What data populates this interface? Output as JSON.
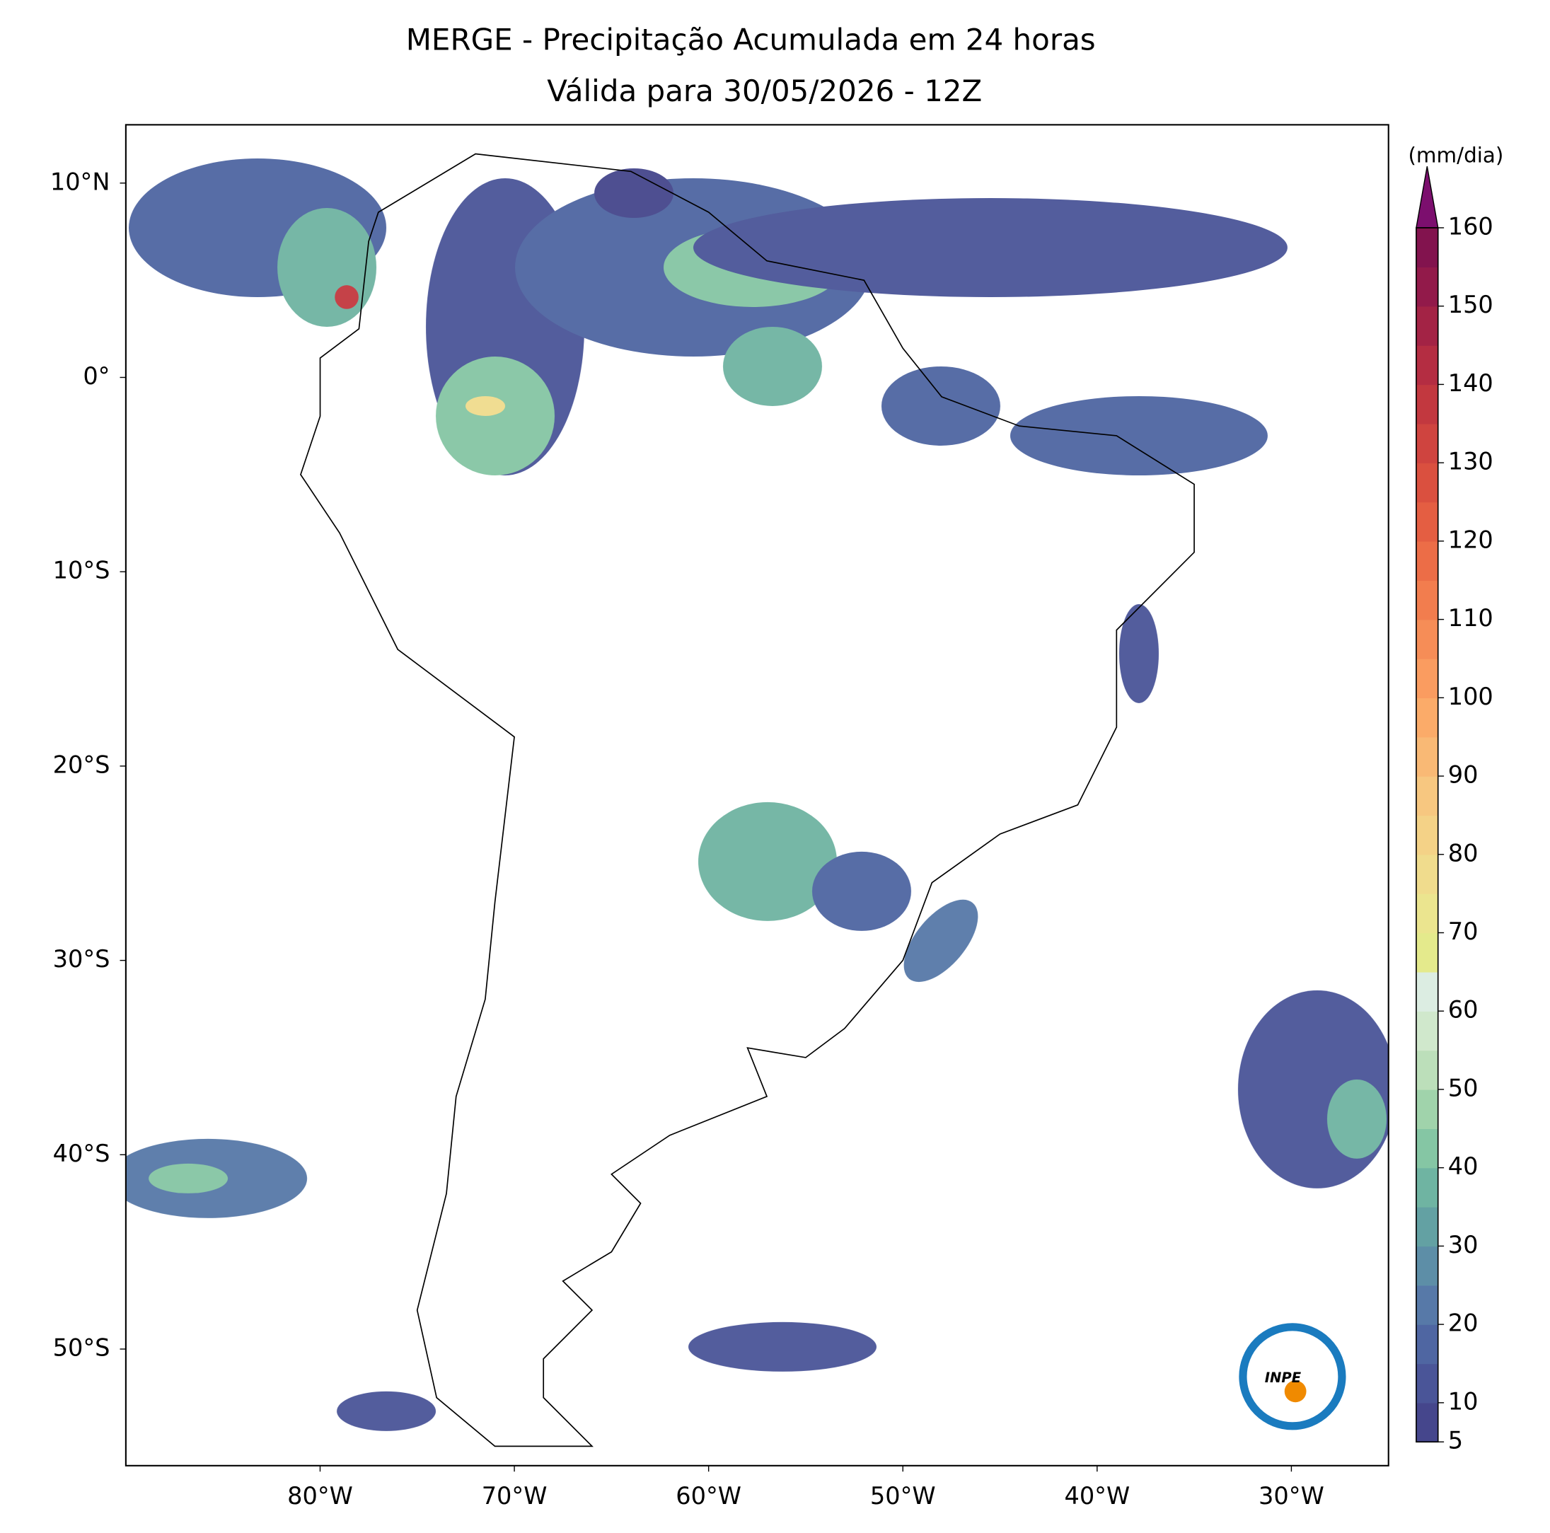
{
  "title": "MERGE - Precipitação Acumulada em 24 horas",
  "subtitle": "Válida para 30/05/2026 - 12Z",
  "map": {
    "xlim": [
      -90,
      -25
    ],
    "ylim": [
      -56,
      13
    ],
    "xticks": [
      {
        "value": -80,
        "label": "80°W"
      },
      {
        "value": -70,
        "label": "70°W"
      },
      {
        "value": -60,
        "label": "60°W"
      },
      {
        "value": -50,
        "label": "50°W"
      },
      {
        "value": -40,
        "label": "40°W"
      },
      {
        "value": -30,
        "label": "30°W"
      }
    ],
    "yticks": [
      {
        "value": 10,
        "label": "10°N"
      },
      {
        "value": 0,
        "label": "0°"
      },
      {
        "value": -10,
        "label": "10°S"
      },
      {
        "value": -20,
        "label": "20°S"
      },
      {
        "value": -30,
        "label": "30°S"
      },
      {
        "value": -40,
        "label": "40°S"
      },
      {
        "value": -50,
        "label": "50°S"
      }
    ]
  },
  "colorbar": {
    "label": "(mm/dia)",
    "levels": [
      5,
      10,
      15,
      20,
      25,
      30,
      35,
      40,
      45,
      50,
      55,
      60,
      65,
      70,
      75,
      80,
      85,
      90,
      95,
      100,
      105,
      110,
      115,
      120,
      125,
      130,
      135,
      140,
      145,
      150,
      155,
      160
    ],
    "colors": [
      "#45468c",
      "#4a5598",
      "#4f66a2",
      "#5779a8",
      "#5d8ea7",
      "#63a1a3",
      "#6fb4a2",
      "#85c6a4",
      "#a0d3ab",
      "#bcdfba",
      "#d0e8cc",
      "#dcede2",
      "#e4ea8c",
      "#ebe58f",
      "#f0dc8d",
      "#f4d287",
      "#f7c780",
      "#f9b975",
      "#fbab69",
      "#fa9c60",
      "#f68d57",
      "#f27d4e",
      "#ec6d47",
      "#e45e42",
      "#da503f",
      "#cf443f",
      "#c2383f",
      "#b42d42",
      "#a32345",
      "#921a4a",
      "#82134e"
    ],
    "extend_color": "#7c0f6e",
    "ticks": [
      5,
      10,
      20,
      30,
      40,
      50,
      60,
      70,
      80,
      90,
      100,
      110,
      120,
      130,
      140,
      150,
      160
    ]
  },
  "logo": "INPE"
}
